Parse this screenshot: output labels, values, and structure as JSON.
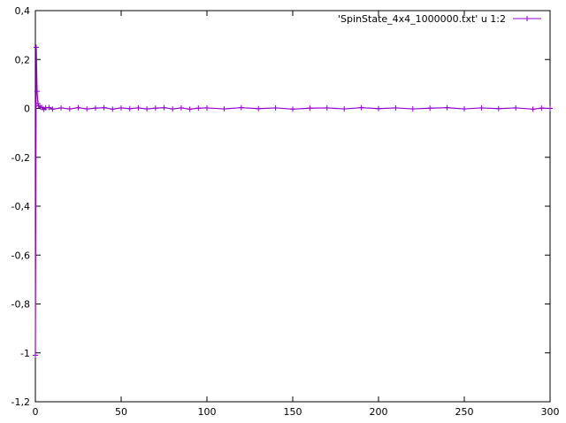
{
  "chart_data": {
    "type": "line",
    "title": "",
    "xlabel": "",
    "ylabel": "",
    "xlim": [
      0,
      300
    ],
    "ylim": [
      -1.2,
      0.4
    ],
    "grid": false,
    "legend_position": "top-right",
    "x_ticks": [
      0,
      50,
      100,
      150,
      200,
      250,
      300
    ],
    "x_tick_labels": [
      "0",
      "50",
      "100",
      "150",
      "200",
      "250",
      "300"
    ],
    "y_ticks": [
      -1.2,
      -1,
      -0.8,
      -0.6,
      -0.4,
      -0.2,
      0,
      0.2,
      0.4
    ],
    "y_tick_labels": [
      "-1,2",
      "-1",
      "-0,8",
      "-0,6",
      "-0,4",
      "-0,2",
      "0",
      "0,2",
      "0,4"
    ],
    "series": [
      {
        "name": "'SpinState_4x4_1000000.txt' u 1:2",
        "color": "#9400d3",
        "marker": "plus",
        "x": [
          0,
          0.5,
          1,
          1.5,
          2,
          3,
          4,
          5,
          6,
          8,
          10,
          15,
          20,
          25,
          30,
          35,
          40,
          45,
          50,
          55,
          60,
          65,
          70,
          75,
          80,
          85,
          90,
          95,
          100,
          110,
          120,
          130,
          140,
          150,
          160,
          170,
          180,
          190,
          200,
          210,
          220,
          230,
          240,
          250,
          260,
          270,
          280,
          290,
          295,
          300
        ],
        "values": [
          -1.01,
          0.25,
          0.07,
          0.02,
          0.01,
          0.005,
          0.003,
          -0.004,
          0.002,
          0.004,
          -0.003,
          0.002,
          -0.002,
          0.003,
          -0.002,
          0.001,
          0.003,
          -0.003,
          0.002,
          -0.001,
          0.002,
          -0.002,
          0.001,
          0.003,
          -0.002,
          0.002,
          -0.003,
          0.001,
          0.002,
          -0.002,
          0.003,
          -0.001,
          0.002,
          -0.003,
          0.001,
          0.002,
          -0.002,
          0.003,
          -0.001,
          0.002,
          -0.002,
          0.001,
          0.003,
          -0.002,
          0.002,
          -0.001,
          0.002,
          -0.003,
          0.001,
          0.0
        ]
      }
    ]
  }
}
